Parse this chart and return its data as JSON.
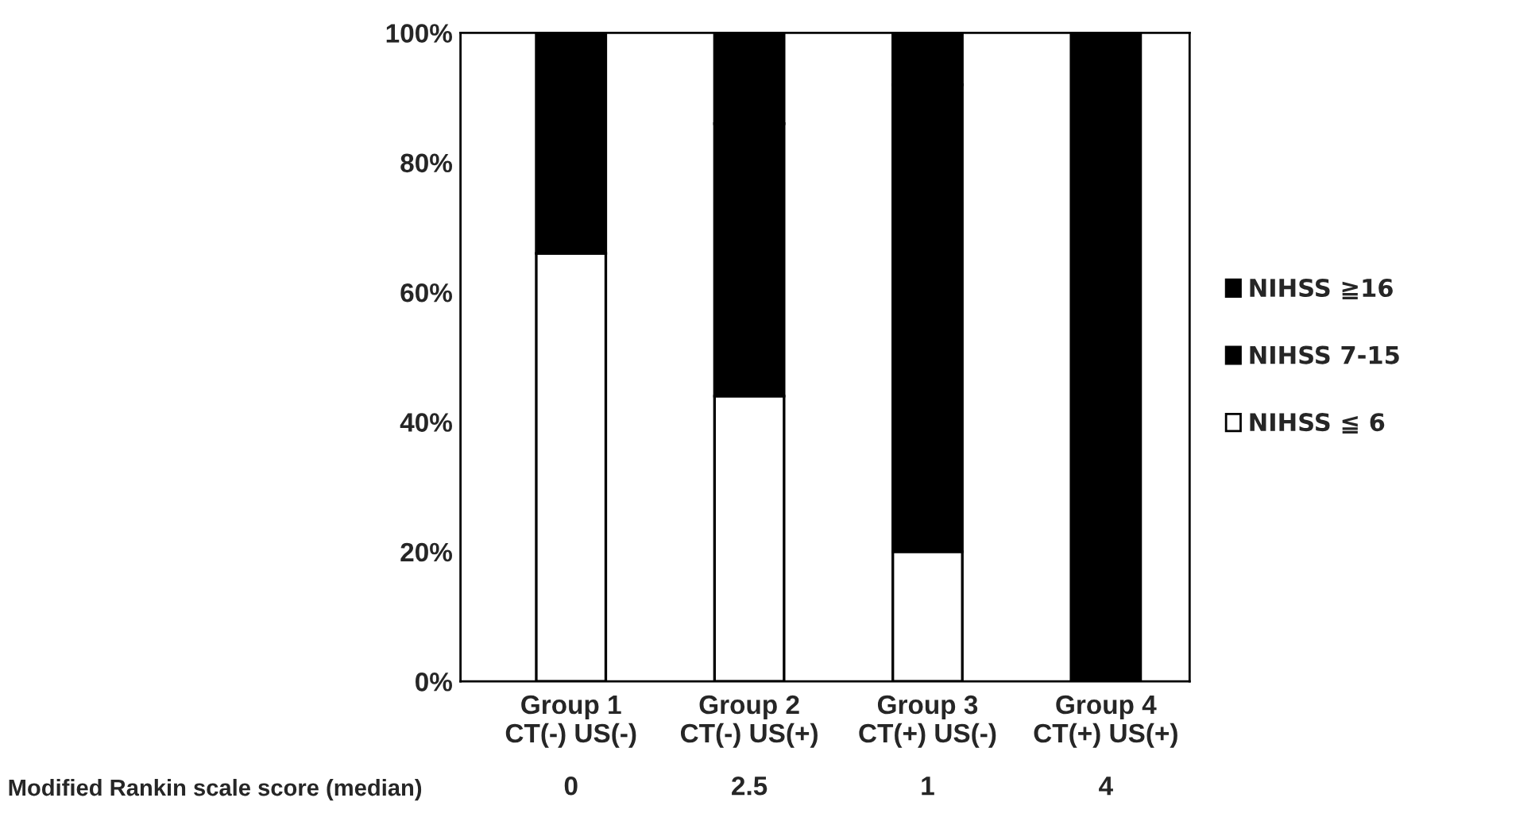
{
  "chart_data": {
    "type": "bar",
    "stacked": true,
    "categories": [
      "Group 1\nCT(-) US(-)",
      "Group 2\nCT(-) US(+)",
      "Group 3\nCT(+) US(-)",
      "Group 4\nCT(+) US(+)"
    ],
    "series": [
      {
        "name": "NIHSS ≦ 6",
        "color": "#ffffff",
        "values": [
          66,
          44,
          20,
          0
        ]
      },
      {
        "name": "NIHSS 7-15",
        "color": "#000000",
        "values": [
          34,
          42,
          72,
          100
        ]
      },
      {
        "name": "NIHSS ≧16",
        "color": "#000000",
        "values": [
          0,
          14,
          8,
          0
        ]
      }
    ],
    "ylim": [
      0,
      100
    ],
    "yticks": [
      {
        "value": 0,
        "label": "0%"
      },
      {
        "value": 20,
        "label": "20%"
      },
      {
        "value": 40,
        "label": "40%"
      },
      {
        "value": 60,
        "label": "60%"
      },
      {
        "value": 80,
        "label": "80%"
      },
      {
        "value": 100,
        "label": "100%"
      }
    ],
    "legend": "right",
    "grid": false,
    "annotations": [
      "Modified Rankin scale score (median)",
      "0",
      "2.5",
      "1",
      "4"
    ]
  }
}
